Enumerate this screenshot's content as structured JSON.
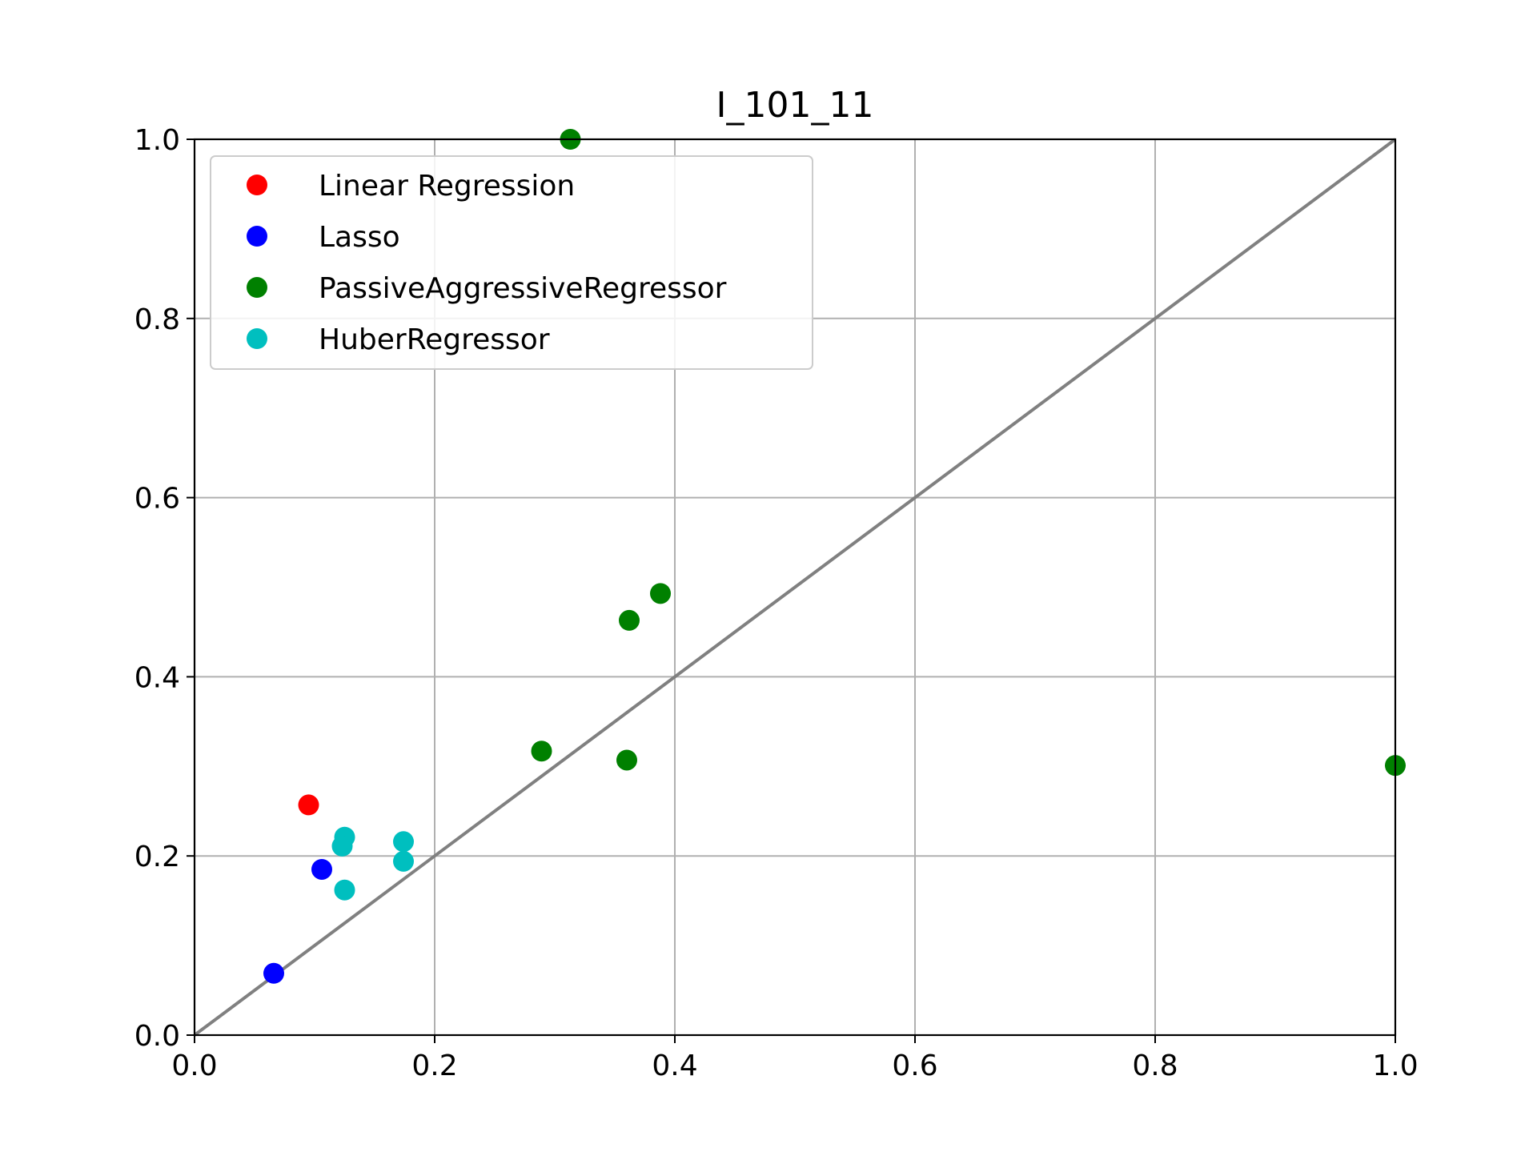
{
  "chart_data": {
    "type": "scatter",
    "title": "I_101_11",
    "xlabel": "",
    "ylabel": "",
    "xlim": [
      0.0,
      1.0
    ],
    "ylim": [
      0.0,
      1.0
    ],
    "x_ticks": [
      "0.0",
      "0.2",
      "0.4",
      "0.6",
      "0.8",
      "1.0"
    ],
    "y_ticks": [
      "0.0",
      "0.2",
      "0.4",
      "0.6",
      "0.8",
      "1.0"
    ],
    "x_tick_values": [
      0.0,
      0.2,
      0.4,
      0.6,
      0.8,
      1.0
    ],
    "y_tick_values": [
      0.0,
      0.2,
      0.4,
      0.6,
      0.8,
      1.0
    ],
    "grid": true,
    "legend_position": "upper-left",
    "reference_line": {
      "x": [
        0.0,
        1.0
      ],
      "y": [
        0.0,
        1.0
      ],
      "color": "#808080"
    },
    "series": [
      {
        "name": "Linear Regression",
        "color": "#ff0000",
        "points": [
          {
            "x": 0.095,
            "y": 0.257
          }
        ]
      },
      {
        "name": "Lasso",
        "color": "#0000ff",
        "points": [
          {
            "x": 0.106,
            "y": 0.185
          },
          {
            "x": 0.066,
            "y": 0.069
          }
        ]
      },
      {
        "name": "PassiveAggressiveRegressor",
        "color": "#008000",
        "points": [
          {
            "x": 0.313,
            "y": 1.0
          },
          {
            "x": 0.388,
            "y": 0.493
          },
          {
            "x": 0.362,
            "y": 0.463
          },
          {
            "x": 0.289,
            "y": 0.317
          },
          {
            "x": 0.36,
            "y": 0.307
          },
          {
            "x": 1.0,
            "y": 0.301
          }
        ]
      },
      {
        "name": "HuberRegressor",
        "color": "#00bfbf",
        "points": [
          {
            "x": 0.125,
            "y": 0.221
          },
          {
            "x": 0.123,
            "y": 0.211
          },
          {
            "x": 0.174,
            "y": 0.216
          },
          {
            "x": 0.174,
            "y": 0.194
          },
          {
            "x": 0.125,
            "y": 0.162
          }
        ]
      }
    ]
  }
}
